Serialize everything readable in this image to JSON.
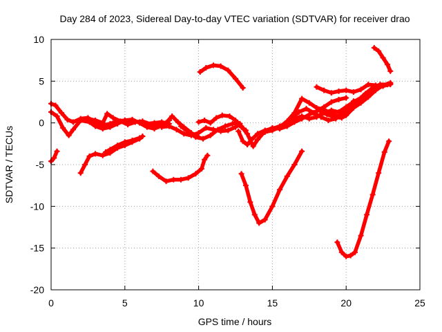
{
  "chart_data": {
    "type": "scatter",
    "title": "Day 284 of 2023, Sidereal Day-to-day VTEC variation (SDTVAR) for receiver drao",
    "xlabel": "GPS time / hours",
    "ylabel": "SDTVAR / TECUs",
    "xlim": [
      0,
      25
    ],
    "ylim": [
      -20,
      10
    ],
    "xticks": [
      0,
      5,
      10,
      15,
      20,
      25
    ],
    "yticks": [
      -20,
      -15,
      -10,
      -5,
      0,
      5,
      10
    ],
    "grid": true,
    "marker": "plus",
    "color": "#ff0000",
    "series": [
      {
        "points": [
          [
            0.0,
            2.3
          ],
          [
            0.3,
            2.1
          ],
          [
            0.7,
            1.2
          ],
          [
            1.1,
            0.4
          ],
          [
            1.5,
            0.1
          ],
          [
            2.0,
            0.5
          ],
          [
            2.5,
            0.6
          ],
          [
            3.0,
            0.1
          ],
          [
            3.5,
            -0.3
          ],
          [
            4.0,
            -0.1
          ],
          [
            4.5,
            0.2
          ],
          [
            5.0,
            0.3
          ],
          [
            5.5,
            0.2
          ],
          [
            6.0,
            0.1
          ],
          [
            6.5,
            -0.1
          ],
          [
            7.0,
            0.0
          ],
          [
            7.5,
            0.1
          ],
          [
            8.0,
            -0.1
          ]
        ]
      },
      {
        "points": [
          [
            0.0,
            1.3
          ],
          [
            0.4,
            0.8
          ],
          [
            0.8,
            -0.6
          ],
          [
            1.2,
            -1.5
          ],
          [
            1.5,
            -0.8
          ],
          [
            2.0,
            0.3
          ],
          [
            2.6,
            0.1
          ],
          [
            3.0,
            -0.4
          ],
          [
            3.5,
            -0.7
          ],
          [
            4.0,
            -0.5
          ],
          [
            4.5,
            -0.1
          ],
          [
            5.0,
            0.3
          ],
          [
            5.5,
            0.4
          ],
          [
            6.0,
            0.0
          ],
          [
            6.5,
            -0.5
          ],
          [
            7.0,
            -0.7
          ],
          [
            7.5,
            -0.3
          ],
          [
            8.0,
            0.3
          ]
        ]
      },
      {
        "points": [
          [
            2.5,
            0.5
          ],
          [
            3.0,
            0.3
          ],
          [
            3.5,
            0.0
          ],
          [
            3.8,
            1.1
          ],
          [
            4.2,
            0.6
          ],
          [
            4.7,
            0.2
          ],
          [
            5.2,
            -0.2
          ],
          [
            5.7,
            0.1
          ],
          [
            6.2,
            0.2
          ],
          [
            6.8,
            -0.2
          ],
          [
            7.3,
            -0.4
          ],
          [
            7.8,
            0.0
          ],
          [
            8.2,
            0.8
          ],
          [
            8.6,
            0.1
          ],
          [
            9.0,
            -0.5
          ],
          [
            9.5,
            -1.2
          ],
          [
            10.0,
            -1.7
          ]
        ]
      },
      {
        "points": [
          [
            7.5,
            -0.5
          ],
          [
            8.0,
            -0.4
          ],
          [
            8.5,
            -0.8
          ],
          [
            9.0,
            -1.3
          ],
          [
            9.5,
            -1.5
          ],
          [
            10.0,
            -1.2
          ],
          [
            10.5,
            -0.6
          ],
          [
            11.0,
            -0.8
          ],
          [
            11.5,
            -1.0
          ],
          [
            12.0,
            -0.9
          ],
          [
            12.5,
            -0.5
          ],
          [
            12.8,
            -0.1
          ]
        ]
      },
      {
        "points": [
          [
            8.8,
            -0.4
          ],
          [
            9.3,
            -1.1
          ],
          [
            9.8,
            -1.7
          ],
          [
            10.3,
            -1.9
          ],
          [
            10.8,
            -1.5
          ],
          [
            11.3,
            -0.8
          ],
          [
            11.8,
            -0.4
          ],
          [
            12.3,
            -0.1
          ],
          [
            12.6,
            0.0
          ],
          [
            12.9,
            -0.5
          ],
          [
            13.2,
            -0.9
          ]
        ]
      },
      {
        "points": [
          [
            10.0,
            0.1
          ],
          [
            10.4,
            0.3
          ],
          [
            10.8,
            0.0
          ],
          [
            11.2,
            0.6
          ],
          [
            11.6,
            0.9
          ],
          [
            12.1,
            0.8
          ],
          [
            12.5,
            0.3
          ],
          [
            12.9,
            -0.4
          ],
          [
            13.3,
            -1.3
          ],
          [
            13.7,
            -2.8
          ],
          [
            14.0,
            -2.0
          ],
          [
            14.5,
            -1.0
          ],
          [
            15.0,
            -0.6
          ],
          [
            15.5,
            -0.7
          ],
          [
            16.0,
            -0.4
          ],
          [
            16.5,
            0.1
          ],
          [
            17.0,
            0.5
          ],
          [
            17.5,
            1.0
          ],
          [
            18.0,
            1.4
          ],
          [
            18.5,
            1.9
          ],
          [
            19.0,
            2.5
          ],
          [
            19.5,
            2.8
          ],
          [
            20.0,
            3.0
          ]
        ]
      },
      {
        "points": [
          [
            12.7,
            -1.0
          ],
          [
            13.0,
            -2.2
          ],
          [
            13.3,
            -2.6
          ],
          [
            13.6,
            -2.0
          ],
          [
            14.0,
            -1.3
          ],
          [
            14.5,
            -0.9
          ],
          [
            15.0,
            -0.7
          ],
          [
            15.5,
            -0.4
          ],
          [
            16.0,
            0.0
          ],
          [
            16.5,
            0.5
          ],
          [
            17.0,
            0.8
          ],
          [
            17.5,
            0.5
          ],
          [
            18.0,
            0.7
          ],
          [
            18.5,
            1.2
          ],
          [
            19.0,
            1.5
          ],
          [
            19.5,
            1.3
          ],
          [
            20.0,
            1.9
          ],
          [
            20.5,
            2.5
          ],
          [
            21.0,
            3.0
          ],
          [
            21.5,
            3.6
          ],
          [
            22.0,
            4.1
          ],
          [
            22.5,
            4.5
          ],
          [
            23.0,
            4.8
          ]
        ]
      },
      {
        "points": [
          [
            14.5,
            -1.1
          ],
          [
            15.0,
            -0.9
          ],
          [
            15.5,
            -0.5
          ],
          [
            16.0,
            0.2
          ],
          [
            16.5,
            1.2
          ],
          [
            17.0,
            2.9
          ],
          [
            17.5,
            2.4
          ],
          [
            18.0,
            1.8
          ],
          [
            18.5,
            1.6
          ],
          [
            19.0,
            1.1
          ],
          [
            19.5,
            0.8
          ],
          [
            20.0,
            1.3
          ],
          [
            20.5,
            2.6
          ],
          [
            21.0,
            2.8
          ]
        ]
      },
      {
        "points": [
          [
            15.8,
            -0.3
          ],
          [
            16.3,
            0.6
          ],
          [
            16.8,
            1.3
          ],
          [
            17.3,
            1.7
          ],
          [
            17.8,
            1.2
          ],
          [
            18.3,
            0.7
          ],
          [
            18.8,
            0.3
          ],
          [
            19.3,
            0.5
          ],
          [
            19.8,
            1.2
          ],
          [
            20.3,
            2.0
          ],
          [
            20.8,
            2.7
          ],
          [
            21.3,
            3.5
          ],
          [
            21.8,
            4.2
          ],
          [
            22.3,
            4.6
          ],
          [
            22.8,
            4.6
          ]
        ]
      },
      {
        "points": [
          [
            18.0,
            4.3
          ],
          [
            18.5,
            3.9
          ],
          [
            19.0,
            3.6
          ],
          [
            19.5,
            3.8
          ],
          [
            20.0,
            3.9
          ],
          [
            20.5,
            3.7
          ],
          [
            21.0,
            4.0
          ],
          [
            21.5,
            4.6
          ],
          [
            22.0,
            4.5
          ],
          [
            22.5,
            4.4
          ],
          [
            23.0,
            4.7
          ]
        ]
      },
      {
        "points": [
          [
            18.2,
            1.5
          ],
          [
            18.7,
            1.0
          ],
          [
            19.2,
            0.7
          ],
          [
            19.7,
            0.6
          ],
          [
            20.0,
            0.9
          ],
          [
            20.5,
            1.8
          ],
          [
            21.0,
            2.4
          ],
          [
            21.5,
            3.1
          ],
          [
            22.0,
            3.9
          ],
          [
            22.5,
            4.5
          ],
          [
            23.0,
            4.6
          ]
        ]
      },
      {
        "points": [
          [
            0.0,
            -4.6
          ],
          [
            0.2,
            -4.2
          ],
          [
            0.4,
            -3.4
          ]
        ]
      },
      {
        "points": [
          [
            2.0,
            -6.0
          ],
          [
            2.3,
            -5.0
          ],
          [
            2.6,
            -4.0
          ],
          [
            3.0,
            -3.7
          ],
          [
            3.5,
            -3.9
          ],
          [
            4.0,
            -3.6
          ],
          [
            4.5,
            -3.0
          ],
          [
            5.0,
            -2.7
          ],
          [
            5.5,
            -2.3
          ],
          [
            6.0,
            -1.9
          ],
          [
            6.2,
            -1.6
          ]
        ]
      },
      {
        "points": [
          [
            3.7,
            -3.5
          ],
          [
            4.0,
            -3.2
          ],
          [
            4.5,
            -2.7
          ],
          [
            5.0,
            -2.3
          ],
          [
            5.5,
            -2.1
          ],
          [
            6.0,
            -1.8
          ]
        ]
      },
      {
        "points": [
          [
            6.9,
            -5.8
          ],
          [
            7.3,
            -6.4
          ],
          [
            7.8,
            -7.0
          ],
          [
            8.3,
            -6.8
          ],
          [
            8.8,
            -6.8
          ],
          [
            9.3,
            -6.6
          ],
          [
            9.8,
            -6.1
          ],
          [
            10.2,
            -5.5
          ],
          [
            10.4,
            -4.4
          ],
          [
            10.6,
            -3.9
          ]
        ]
      },
      {
        "points": [
          [
            10.1,
            6.1
          ],
          [
            10.5,
            6.6
          ],
          [
            11.0,
            6.9
          ],
          [
            11.5,
            6.8
          ],
          [
            12.0,
            6.3
          ],
          [
            12.5,
            5.3
          ],
          [
            13.0,
            4.2
          ]
        ]
      },
      {
        "points": [
          [
            12.9,
            -6.1
          ],
          [
            13.2,
            -7.5
          ],
          [
            13.5,
            -9.5
          ],
          [
            13.8,
            -11.0
          ],
          [
            14.1,
            -12.0
          ],
          [
            14.5,
            -11.6
          ],
          [
            15.0,
            -10.0
          ],
          [
            15.5,
            -8.0
          ],
          [
            16.0,
            -6.4
          ],
          [
            16.5,
            -5.0
          ],
          [
            17.0,
            -3.4
          ]
        ]
      },
      {
        "points": [
          [
            19.4,
            -14.3
          ],
          [
            19.7,
            -15.5
          ],
          [
            20.0,
            -16.0
          ],
          [
            20.3,
            -15.9
          ],
          [
            20.6,
            -15.5
          ],
          [
            21.0,
            -13.5
          ],
          [
            21.4,
            -11.0
          ],
          [
            21.8,
            -8.6
          ],
          [
            22.2,
            -6.0
          ],
          [
            22.6,
            -3.5
          ],
          [
            22.9,
            -2.2
          ]
        ]
      },
      {
        "points": [
          [
            21.9,
            9.0
          ],
          [
            22.2,
            8.6
          ],
          [
            22.5,
            7.8
          ],
          [
            22.8,
            7.0
          ],
          [
            23.0,
            6.2
          ]
        ]
      }
    ]
  }
}
